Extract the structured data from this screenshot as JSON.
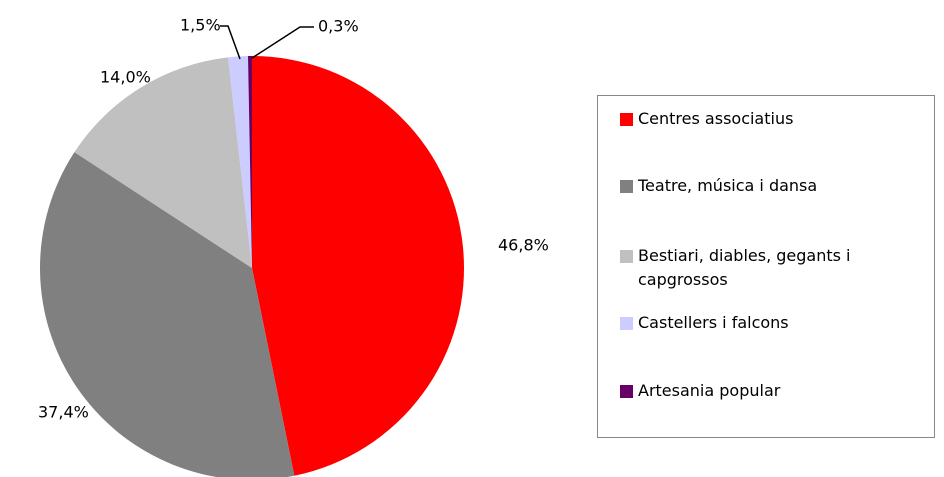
{
  "chart_data": {
    "type": "pie",
    "categories": [
      "Centres associatius",
      "Teatre, música i dansa",
      "Bestiari, diables, gegants i capgrossos",
      "Castellers i falcons",
      "Artesania popular"
    ],
    "values": [
      46.8,
      37.4,
      14.0,
      1.5,
      0.3
    ],
    "value_labels": [
      "46,8%",
      "37,4%",
      "14,0%",
      "1,5%",
      "0,3%"
    ],
    "colors": [
      "#ff0000",
      "#808080",
      "#c0c0c0",
      "#ccccff",
      "#660066"
    ],
    "legend": "right"
  }
}
